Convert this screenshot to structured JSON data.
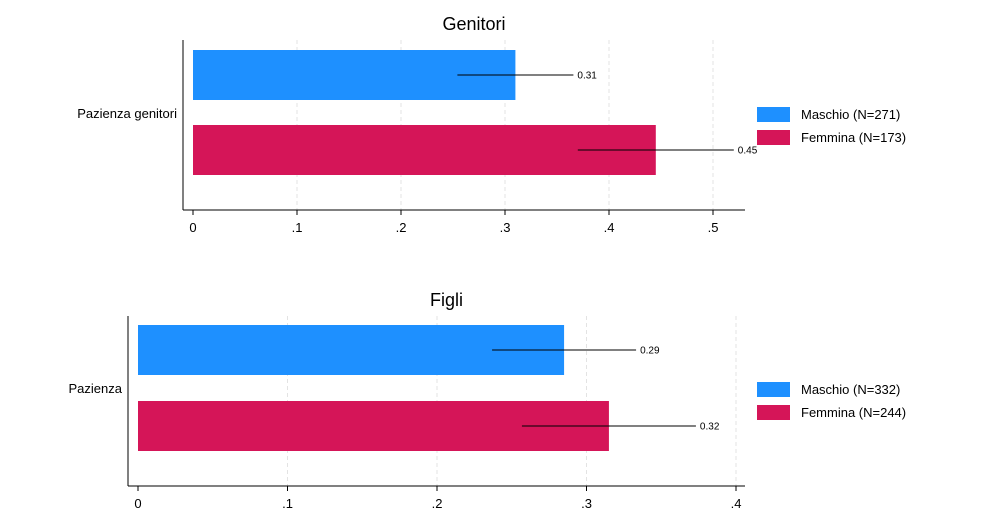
{
  "chart_data": [
    {
      "type": "bar",
      "orientation": "horizontal",
      "title": "Genitori",
      "category": "Pazienza genitori",
      "xlim": [
        0,
        0.53
      ],
      "xticks": [
        0,
        0.1,
        0.2,
        0.3,
        0.4,
        0.5
      ],
      "xtick_labels": [
        "0",
        ".1",
        ".2",
        ".3",
        ".4",
        ".5"
      ],
      "grid": true,
      "legend_position": "right",
      "series": [
        {
          "name": "Maschio (N=271)",
          "value": 0.31,
          "label": "0.31",
          "color": "#1e90ff"
        },
        {
          "name": "Femmina (N=173)",
          "value": 0.445,
          "label": "0.45",
          "color": "#d51558"
        }
      ]
    },
    {
      "type": "bar",
      "orientation": "horizontal",
      "title": "Figli",
      "category": "Pazienza",
      "xlim": [
        0,
        0.4
      ],
      "xticks": [
        0,
        0.1,
        0.2,
        0.3,
        0.4
      ],
      "xtick_labels": [
        "0",
        ".1",
        ".2",
        ".3",
        ".4"
      ],
      "grid": true,
      "legend_position": "right",
      "series": [
        {
          "name": "Maschio (N=332)",
          "value": 0.285,
          "label": "0.29",
          "color": "#1e90ff"
        },
        {
          "name": "Femmina (N=244)",
          "value": 0.315,
          "label": "0.32",
          "color": "#d51558"
        }
      ]
    }
  ]
}
